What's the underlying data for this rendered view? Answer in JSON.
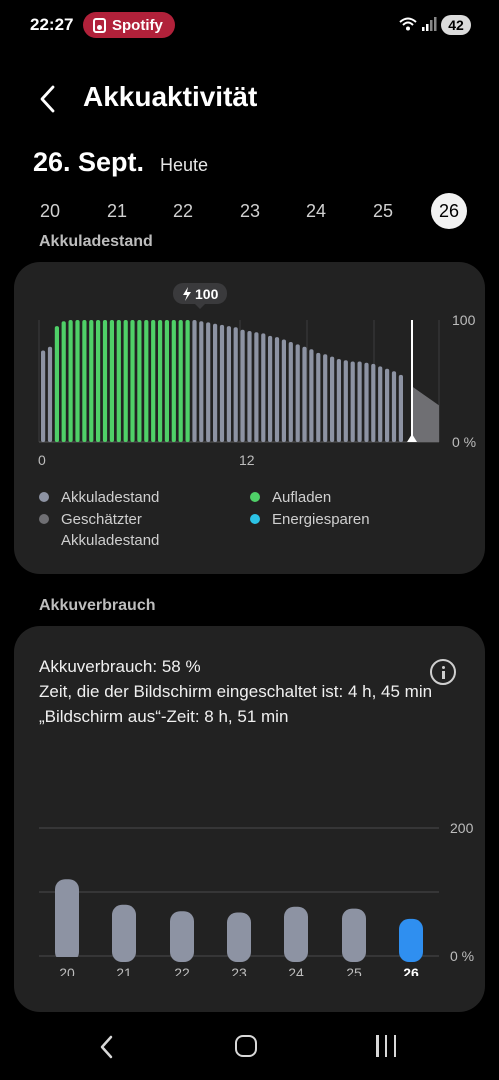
{
  "status_bar": {
    "time": "22:27",
    "notification_app": "Spotify",
    "battery_level": "42",
    "accent": "#b1213a"
  },
  "header": {
    "title": "Akkuaktivität",
    "date": "26. Sept.",
    "date_sub": "Heute"
  },
  "days": [
    {
      "label": "20",
      "selected": false
    },
    {
      "label": "21",
      "selected": false
    },
    {
      "label": "22",
      "selected": false
    },
    {
      "label": "23",
      "selected": false
    },
    {
      "label": "24",
      "selected": false
    },
    {
      "label": "25",
      "selected": false
    },
    {
      "label": "26",
      "selected": true
    }
  ],
  "battery_level_section": {
    "title": "Akkuladestand",
    "charge_badge": "100",
    "legend": [
      {
        "label": "Akkuladestand",
        "color": "#8d93a3"
      },
      {
        "label": "Aufladen",
        "color": "#4fd068"
      },
      {
        "label": "Geschätzter Akkuladestand",
        "color": "#6f6f73"
      },
      {
        "label": "Energiesparen",
        "color": "#2cc3e6"
      }
    ]
  },
  "usage_section": {
    "title": "Akkuverbrauch",
    "line1": "Akkuverbrauch: 58 %",
    "line2": "Zeit, die der Bildschirm eingeschaltet ist: 4 h, 45 min",
    "line3": "„Bildschirm aus“-Zeit: 8 h, 51 min"
  },
  "chart_data": [
    {
      "type": "bar",
      "title": "Akkuladestand",
      "x_ticks": [
        "0",
        "12"
      ],
      "y_ticks": [
        "100",
        "0 %"
      ],
      "ylim": [
        0,
        100
      ],
      "series": [
        {
          "name": "Akkuladestand",
          "color": "#8d93a3",
          "values": [
            75,
            78
          ]
        },
        {
          "name": "Aufladen",
          "color": "#4fd068",
          "values": [
            95,
            99,
            100,
            100,
            100,
            100,
            100,
            100,
            100,
            100,
            100,
            100,
            100,
            100,
            100,
            100,
            100,
            100,
            100,
            100
          ]
        },
        {
          "name": "Akkuladestand",
          "color": "#8d93a3",
          "values": [
            100,
            99,
            98,
            97,
            96,
            95,
            94,
            92,
            91,
            90,
            89,
            87,
            86,
            84,
            82,
            80,
            78,
            76,
            73,
            72,
            70,
            68,
            67,
            66,
            66,
            65,
            64,
            62,
            60,
            58,
            55
          ]
        },
        {
          "name": "Geschätzter Akkuladestand",
          "color": "#6f6f73",
          "values": [
            45,
            40,
            35,
            30
          ]
        }
      ]
    },
    {
      "type": "bar",
      "title": "Akkuverbrauch",
      "categories": [
        "20",
        "21",
        "22",
        "23",
        "24",
        "25",
        "26"
      ],
      "values": [
        120,
        80,
        70,
        68,
        77,
        74,
        58
      ],
      "highlight_index": 6,
      "y_ticks": [
        "200",
        "0 %"
      ],
      "ylim": [
        0,
        200
      ],
      "colors": {
        "bar": "#8d93a3",
        "highlight": "#2f8ff0"
      }
    }
  ]
}
